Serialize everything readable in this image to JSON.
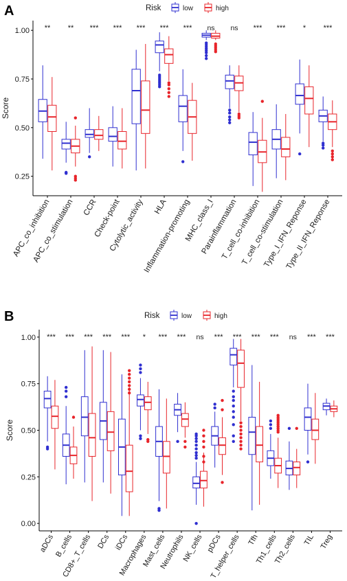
{
  "colors": {
    "low": "#2f2fd0",
    "high": "#e8242a"
  },
  "chart_data": [
    {
      "type": "box",
      "panel": "A",
      "ylabel": "Score",
      "ylim": [
        0.15,
        1.05
      ],
      "yticks": [
        0.25,
        0.5,
        0.75,
        1.0
      ],
      "ytick_labels": [
        "0.25",
        "0.50",
        "0.75",
        "1.00"
      ],
      "legend": {
        "title": "Risk",
        "entries": [
          "low",
          "high"
        ],
        "position": "top"
      },
      "categories": [
        "APC_co_inhibition",
        "APC_co_stimulation",
        "CCR",
        "Check-point",
        "Cytolytic_activity",
        "HLA",
        "Inflammation-promoting",
        "MHC_class_I",
        "Parainflammation",
        "T_cell_co-inhibition",
        "T_cell_co-stimulation",
        "Type_I_IFN_Reponse",
        "Type_II_IFN_Reponse"
      ],
      "significance": [
        "**",
        "**",
        "***",
        "***",
        "***",
        "***",
        "***",
        "ns",
        "ns",
        "***",
        "***",
        "*",
        "***"
      ],
      "series": [
        {
          "name": "low",
          "boxes": [
            {
              "whislo": 0.34,
              "q1": 0.53,
              "med": 0.585,
              "q3": 0.645,
              "whishi": 0.82,
              "outliers": []
            },
            {
              "whislo": 0.32,
              "q1": 0.39,
              "med": 0.42,
              "q3": 0.44,
              "whishi": 0.53,
              "outliers": [
                0.27,
                0.265
              ]
            },
            {
              "whislo": 0.37,
              "q1": 0.45,
              "med": 0.465,
              "q3": 0.49,
              "whishi": 0.6,
              "outliers": [
                0.35
              ]
            },
            {
              "whislo": 0.3,
              "q1": 0.43,
              "med": 0.455,
              "q3": 0.5,
              "whishi": 0.61,
              "outliers": []
            },
            {
              "whislo": 0.28,
              "q1": 0.52,
              "med": 0.69,
              "q3": 0.8,
              "whishi": 0.9,
              "outliers": []
            },
            {
              "whislo": 0.79,
              "q1": 0.885,
              "med": 0.925,
              "q3": 0.945,
              "whishi": 0.99,
              "outliers": [
                0.77,
                0.76,
                0.75,
                0.74,
                0.73,
                0.72,
                0.71
              ]
            },
            {
              "whislo": 0.38,
              "q1": 0.53,
              "med": 0.61,
              "q3": 0.665,
              "whishi": 0.8,
              "outliers": [
                0.325
              ]
            },
            {
              "whislo": 0.95,
              "q1": 0.965,
              "med": 0.975,
              "q3": 0.985,
              "whishi": 1.0,
              "outliers": [
                0.935,
                0.925,
                0.915,
                0.905,
                0.895,
                0.885,
                0.87,
                0.855
              ]
            },
            {
              "whislo": 0.6,
              "q1": 0.7,
              "med": 0.74,
              "q3": 0.77,
              "whishi": 0.82,
              "outliers": [
                0.59,
                0.575,
                0.555,
                0.54,
                0.525
              ]
            },
            {
              "whislo": 0.2,
              "q1": 0.36,
              "med": 0.425,
              "q3": 0.475,
              "whishi": 0.58,
              "outliers": []
            },
            {
              "whislo": 0.24,
              "q1": 0.39,
              "med": 0.44,
              "q3": 0.49,
              "whishi": 0.62,
              "outliers": []
            },
            {
              "whislo": 0.47,
              "q1": 0.62,
              "med": 0.665,
              "q3": 0.725,
              "whishi": 0.85,
              "outliers": [
                0.365
              ]
            },
            {
              "whislo": 0.43,
              "q1": 0.53,
              "med": 0.56,
              "q3": 0.59,
              "whishi": 0.66,
              "outliers": [
                0.42,
                0.41,
                0.395
              ]
            }
          ]
        },
        {
          "name": "high",
          "boxes": [
            {
              "whislo": 0.28,
              "q1": 0.48,
              "med": 0.555,
              "q3": 0.615,
              "whishi": 0.76,
              "outliers": []
            },
            {
              "whislo": 0.3,
              "q1": 0.37,
              "med": 0.405,
              "q3": 0.44,
              "whishi": 0.51,
              "outliers": [
                0.55,
                0.25,
                0.24,
                0.23
              ]
            },
            {
              "whislo": 0.38,
              "q1": 0.44,
              "med": 0.46,
              "q3": 0.49,
              "whishi": 0.56,
              "outliers": []
            },
            {
              "whislo": 0.29,
              "q1": 0.39,
              "med": 0.43,
              "q3": 0.48,
              "whishi": 0.6,
              "outliers": []
            },
            {
              "whislo": 0.29,
              "q1": 0.47,
              "med": 0.59,
              "q3": 0.74,
              "whishi": 0.93,
              "outliers": []
            },
            {
              "whislo": 0.74,
              "q1": 0.83,
              "med": 0.875,
              "q3": 0.905,
              "whishi": 0.97,
              "outliers": [
                0.73,
                0.72,
                0.7,
                0.68,
                0.66
              ]
            },
            {
              "whislo": 0.33,
              "q1": 0.47,
              "med": 0.555,
              "q3": 0.64,
              "whishi": 0.73,
              "outliers": []
            },
            {
              "whislo": 0.95,
              "q1": 0.96,
              "med": 0.97,
              "q3": 0.985,
              "whishi": 1.0,
              "outliers": [
                0.93,
                0.92,
                0.91,
                0.9,
                0.89
              ]
            },
            {
              "whislo": 0.58,
              "q1": 0.69,
              "med": 0.73,
              "q3": 0.765,
              "whishi": 0.82,
              "outliers": [
                0.57,
                0.56,
                0.55
              ]
            },
            {
              "whislo": 0.17,
              "q1": 0.32,
              "med": 0.375,
              "q3": 0.435,
              "whishi": 0.55,
              "outliers": [
                0.635
              ]
            },
            {
              "whislo": 0.23,
              "q1": 0.35,
              "med": 0.39,
              "q3": 0.45,
              "whishi": 0.57,
              "outliers": []
            },
            {
              "whislo": 0.4,
              "q1": 0.57,
              "med": 0.65,
              "q3": 0.71,
              "whishi": 0.82,
              "outliers": []
            },
            {
              "whislo": 0.4,
              "q1": 0.49,
              "med": 0.53,
              "q3": 0.57,
              "whishi": 0.64,
              "outliers": [
                0.38,
                0.365,
                0.35,
                0.335
              ]
            }
          ]
        }
      ]
    },
    {
      "type": "box",
      "panel": "B",
      "ylabel": "Score",
      "ylim": [
        -0.04,
        1.04
      ],
      "yticks": [
        0,
        0.25,
        0.5,
        0.75,
        1.0
      ],
      "ytick_labels": [
        "0.00",
        "0.25",
        "0.50",
        "0.75",
        "1.00"
      ],
      "legend": {
        "title": "Risk",
        "entries": [
          "low",
          "high"
        ],
        "position": "top"
      },
      "categories": [
        "aDCs",
        "B_cells",
        "CD8+_T_cells",
        "DCs",
        "iDCs",
        "Macrophages",
        "Mast_cells",
        "Neutrophils",
        "NK_cells",
        "pDCs",
        "T_helper_cells",
        "Tfh",
        "Th1_cells",
        "Th2_cells",
        "TIL",
        "Treg"
      ],
      "significance": [
        "***",
        "***",
        "***",
        "***",
        "***",
        "*",
        "***",
        "***",
        "ns",
        "***",
        "***",
        "***",
        "***",
        "ns",
        "***",
        "***"
      ],
      "series": [
        {
          "name": "low",
          "boxes": [
            {
              "whislo": 0.44,
              "q1": 0.62,
              "med": 0.67,
              "q3": 0.71,
              "whishi": 0.79,
              "outliers": [
                0.41,
                0.4
              ]
            },
            {
              "whislo": 0.21,
              "q1": 0.36,
              "med": 0.42,
              "q3": 0.48,
              "whishi": 0.63,
              "outliers": [
                0.73,
                0.71,
                0.68
              ]
            },
            {
              "whislo": 0.22,
              "q1": 0.47,
              "med": 0.57,
              "q3": 0.68,
              "whishi": 0.93,
              "outliers": []
            },
            {
              "whislo": 0.22,
              "q1": 0.45,
              "med": 0.55,
              "q3": 0.65,
              "whishi": 0.93,
              "outliers": []
            },
            {
              "whislo": 0.04,
              "q1": 0.26,
              "med": 0.41,
              "q3": 0.56,
              "whishi": 0.8,
              "outliers": []
            },
            {
              "whislo": 0.5,
              "q1": 0.63,
              "med": 0.665,
              "q3": 0.69,
              "whishi": 0.78,
              "outliers": [
                0.85,
                0.83,
                0.81,
                0.47,
                0.455
              ]
            },
            {
              "whislo": 0.12,
              "q1": 0.36,
              "med": 0.44,
              "q3": 0.52,
              "whishi": 0.72,
              "outliers": [
                0.08,
                0.07
              ]
            },
            {
              "whislo": 0.49,
              "q1": 0.58,
              "med": 0.61,
              "q3": 0.64,
              "whishi": 0.7,
              "outliers": [
                0.44
              ]
            },
            {
              "whislo": 0.1,
              "q1": 0.19,
              "med": 0.215,
              "q3": 0.25,
              "whishi": 0.33,
              "outliers": [
                0.48,
                0.47,
                0.455,
                0.44,
                0.42,
                0.4,
                0.38,
                0.365,
                0.35,
                0.0
              ]
            },
            {
              "whislo": 0.3,
              "q1": 0.42,
              "med": 0.47,
              "q3": 0.52,
              "whishi": 0.6,
              "outliers": [
                0.64,
                0.62
              ]
            },
            {
              "whislo": 0.73,
              "q1": 0.85,
              "med": 0.905,
              "q3": 0.94,
              "whishi": 0.99,
              "outliers": [
                0.71,
                0.68,
                0.66,
                0.63,
                0.6,
                0.57,
                0.53,
                0.47,
                0.44
              ]
            },
            {
              "whislo": 0.07,
              "q1": 0.37,
              "med": 0.49,
              "q3": 0.57,
              "whishi": 0.85,
              "outliers": []
            },
            {
              "whislo": 0.24,
              "q1": 0.31,
              "med": 0.35,
              "q3": 0.39,
              "whishi": 0.48,
              "outliers": [
                0.55,
                0.53,
                0.51
              ]
            },
            {
              "whislo": 0.18,
              "q1": 0.26,
              "med": 0.295,
              "q3": 0.335,
              "whishi": 0.44,
              "outliers": [
                0.51
              ]
            },
            {
              "whislo": 0.37,
              "q1": 0.5,
              "med": 0.57,
              "q3": 0.62,
              "whishi": 0.75,
              "outliers": [
                0.33
              ]
            },
            {
              "whislo": 0.58,
              "q1": 0.61,
              "med": 0.63,
              "q3": 0.645,
              "whishi": 0.67,
              "outliers": []
            }
          ]
        },
        {
          "name": "high",
          "boxes": [
            {
              "whislo": 0.29,
              "q1": 0.51,
              "med": 0.575,
              "q3": 0.63,
              "whishi": 0.77,
              "outliers": []
            },
            {
              "whislo": 0.24,
              "q1": 0.32,
              "med": 0.365,
              "q3": 0.41,
              "whishi": 0.52,
              "outliers": [
                0.57
              ]
            },
            {
              "whislo": 0.12,
              "q1": 0.36,
              "med": 0.46,
              "q3": 0.59,
              "whishi": 0.95,
              "outliers": []
            },
            {
              "whislo": 0.16,
              "q1": 0.39,
              "med": 0.49,
              "q3": 0.6,
              "whishi": 0.92,
              "outliers": []
            },
            {
              "whislo": 0.04,
              "q1": 0.17,
              "med": 0.28,
              "q3": 0.42,
              "whishi": 0.73,
              "outliers": [
                0.82,
                0.8,
                0.78,
                0.76,
                0.74,
                0.72,
                0.7
              ]
            },
            {
              "whislo": 0.48,
              "q1": 0.61,
              "med": 0.65,
              "q3": 0.68,
              "whishi": 0.76,
              "outliers": [
                0.45,
                0.44
              ]
            },
            {
              "whislo": 0.08,
              "q1": 0.27,
              "med": 0.36,
              "q3": 0.44,
              "whishi": 0.67,
              "outliers": []
            },
            {
              "whislo": 0.46,
              "q1": 0.52,
              "med": 0.56,
              "q3": 0.59,
              "whishi": 0.65,
              "outliers": [
                0.44,
                0.41
              ]
            },
            {
              "whislo": 0.09,
              "q1": 0.19,
              "med": 0.23,
              "q3": 0.28,
              "whishi": 0.38,
              "outliers": [
                0.5,
                0.47,
                0.44,
                0.41,
                0.36,
                0.33
              ]
            },
            {
              "whislo": 0.26,
              "q1": 0.37,
              "med": 0.42,
              "q3": 0.46,
              "whishi": 0.57,
              "outliers": [
                0.66,
                0.61,
                0.22
              ]
            },
            {
              "whislo": 0.55,
              "q1": 0.73,
              "med": 0.86,
              "q3": 0.93,
              "whishi": 0.99,
              "outliers": [
                0.54,
                0.52,
                0.5,
                0.48,
                0.46,
                0.44,
                0.42,
                0.4
              ]
            },
            {
              "whislo": 0.1,
              "q1": 0.33,
              "med": 0.42,
              "q3": 0.52,
              "whishi": 0.76,
              "outliers": []
            },
            {
              "whislo": 0.19,
              "q1": 0.27,
              "med": 0.31,
              "q3": 0.35,
              "whishi": 0.46,
              "outliers": [
                0.58,
                0.57,
                0.56,
                0.55,
                0.54,
                0.53,
                0.52,
                0.51,
                0.5,
                0.49
              ]
            },
            {
              "whislo": 0.19,
              "q1": 0.26,
              "med": 0.3,
              "q3": 0.33,
              "whishi": 0.4,
              "outliers": [
                0.51
              ]
            },
            {
              "whislo": 0.32,
              "q1": 0.45,
              "med": 0.5,
              "q3": 0.56,
              "whishi": 0.7,
              "outliers": []
            },
            {
              "whislo": 0.57,
              "q1": 0.6,
              "med": 0.615,
              "q3": 0.63,
              "whishi": 0.66,
              "outliers": []
            }
          ]
        }
      ]
    }
  ]
}
